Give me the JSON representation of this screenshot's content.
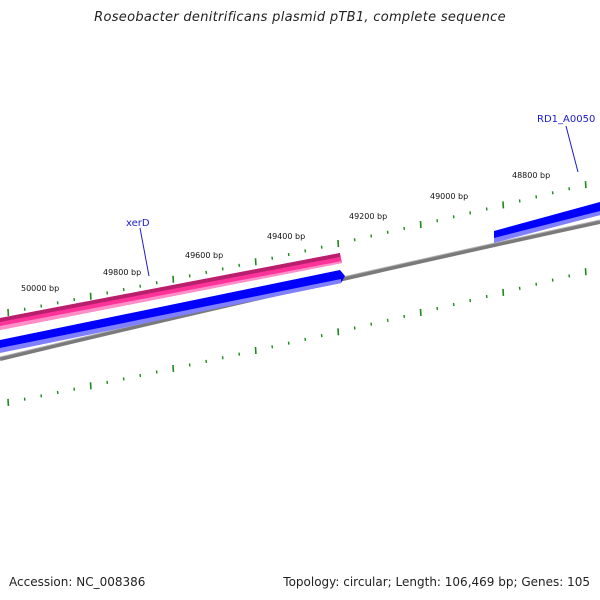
{
  "title": "Roseobacter denitrificans plasmid pTB1, complete sequence",
  "footer": {
    "accession": "Accession: NC_008386",
    "summary": "Topology: circular; Length: 106,469 bp; Genes: 105"
  },
  "ticks": [
    "50000 bp",
    "49800 bp",
    "49600 bp",
    "49400 bp",
    "49200 bp",
    "49000 bp",
    "48800 bp"
  ],
  "genes": [
    {
      "name": "xerD",
      "strand": "reverse",
      "color": "#ff3399"
    },
    {
      "name": "RD1_A0050",
      "strand": "forward",
      "color": "#0000ff"
    }
  ],
  "colors": {
    "backbone": "#808080",
    "forward_cds": "#0000ff",
    "reverse_cds": "#ff3399",
    "ticks": "#1a8a1a",
    "gene_label": "#1a1ad0"
  }
}
